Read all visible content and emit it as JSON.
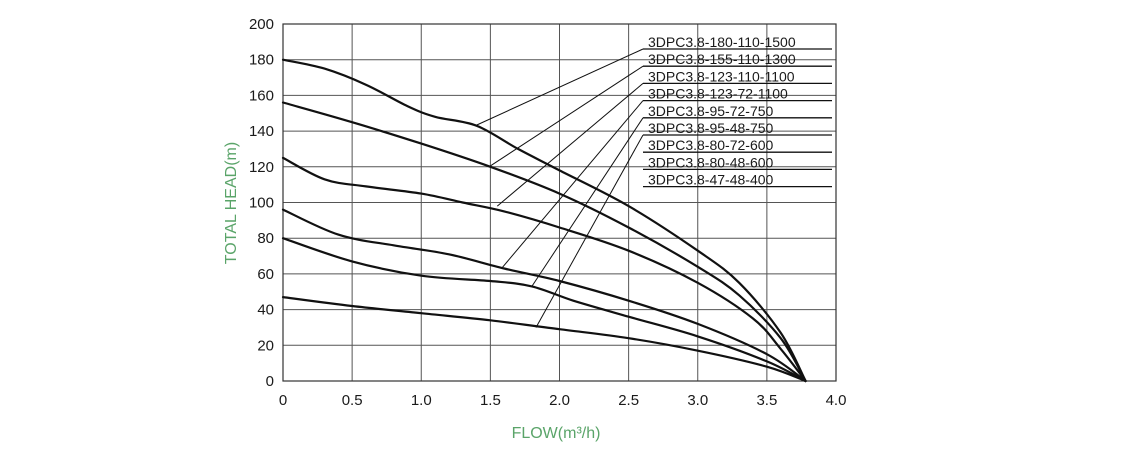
{
  "chart_data": {
    "type": "line",
    "title": "",
    "xlabel": "FLOW(m³/h)",
    "ylabel": "TOTAL HEAD(m)",
    "xlim": [
      0,
      4.0
    ],
    "ylim": [
      0,
      200
    ],
    "x_ticks": [
      "0",
      "0.5",
      "1.0",
      "1.5",
      "2.0",
      "2.5",
      "3.0",
      "3.5",
      "4.0"
    ],
    "y_ticks": [
      "0",
      "20",
      "40",
      "60",
      "80",
      "100",
      "120",
      "140",
      "160",
      "180",
      "200"
    ],
    "grid": true,
    "legend_placement": "top-right",
    "axis_label_color": "#5aa469",
    "line_color": "#111111",
    "series": [
      {
        "name": "3DPC3.8-180-110-1500",
        "points": [
          [
            0,
            180
          ],
          [
            0.3,
            175
          ],
          [
            0.6,
            166
          ],
          [
            0.9,
            154
          ],
          [
            1.1,
            148
          ],
          [
            1.4,
            143
          ],
          [
            1.7,
            130
          ],
          [
            2.0,
            118
          ],
          [
            2.5,
            98
          ],
          [
            3.0,
            73
          ],
          [
            3.3,
            55
          ],
          [
            3.6,
            27
          ],
          [
            3.78,
            0
          ]
        ]
      },
      {
        "name": "3DPC3.8-155-110-1300",
        "points": [
          [
            0,
            156
          ],
          [
            0.5,
            145
          ],
          [
            1.0,
            133
          ],
          [
            1.5,
            120
          ],
          [
            2.0,
            105
          ],
          [
            2.5,
            86
          ],
          [
            3.0,
            64
          ],
          [
            3.3,
            48
          ],
          [
            3.6,
            24
          ],
          [
            3.78,
            0
          ]
        ]
      },
      {
        "name": "3DPC3.8-123-110-1100",
        "points": [
          [
            0,
            125
          ],
          [
            0.3,
            113
          ],
          [
            0.6,
            109
          ],
          [
            1.0,
            105
          ],
          [
            1.3,
            100
          ],
          [
            1.6,
            95
          ],
          [
            2.0,
            86
          ],
          [
            2.5,
            73
          ],
          [
            3.0,
            55
          ],
          [
            3.4,
            35
          ],
          [
            3.6,
            18
          ],
          [
            3.78,
            0
          ]
        ]
      },
      {
        "name": "3DPC3.8-123-72-1100",
        "points": [
          [
            0,
            96
          ],
          [
            0.4,
            82
          ],
          [
            0.8,
            76
          ],
          [
            1.2,
            71
          ],
          [
            1.6,
            63
          ],
          [
            2.0,
            56
          ],
          [
            2.5,
            45
          ],
          [
            3.0,
            32
          ],
          [
            3.5,
            15
          ],
          [
            3.78,
            0
          ]
        ]
      },
      {
        "name": "3DPC3.8-95-72-750",
        "points": [
          [
            0,
            80
          ],
          [
            0.5,
            67
          ],
          [
            1.0,
            59
          ],
          [
            1.5,
            56
          ],
          [
            1.8,
            53
          ],
          [
            2.1,
            45
          ],
          [
            2.5,
            36
          ],
          [
            3.0,
            25
          ],
          [
            3.5,
            11
          ],
          [
            3.78,
            0
          ]
        ]
      },
      {
        "name": "3DPC3.8-95-48-750",
        "points": [
          [
            0,
            47
          ],
          [
            0.5,
            42
          ],
          [
            1.0,
            38
          ],
          [
            1.5,
            34
          ],
          [
            2.0,
            29
          ],
          [
            2.5,
            24
          ],
          [
            3.0,
            17
          ],
          [
            3.5,
            8
          ],
          [
            3.78,
            0
          ]
        ]
      },
      {
        "name": "3DPC3.8-80-72-600",
        "points": []
      },
      {
        "name": "3DPC3.8-80-48-600",
        "points": []
      },
      {
        "name": "3DPC3.8-47-48-400",
        "points": []
      }
    ],
    "leader_targets": [
      [
        1.39,
        143
      ],
      [
        1.49,
        120
      ],
      [
        1.55,
        98
      ],
      [
        1.58,
        63
      ],
      [
        1.8,
        53
      ],
      [
        1.83,
        30
      ]
    ]
  }
}
